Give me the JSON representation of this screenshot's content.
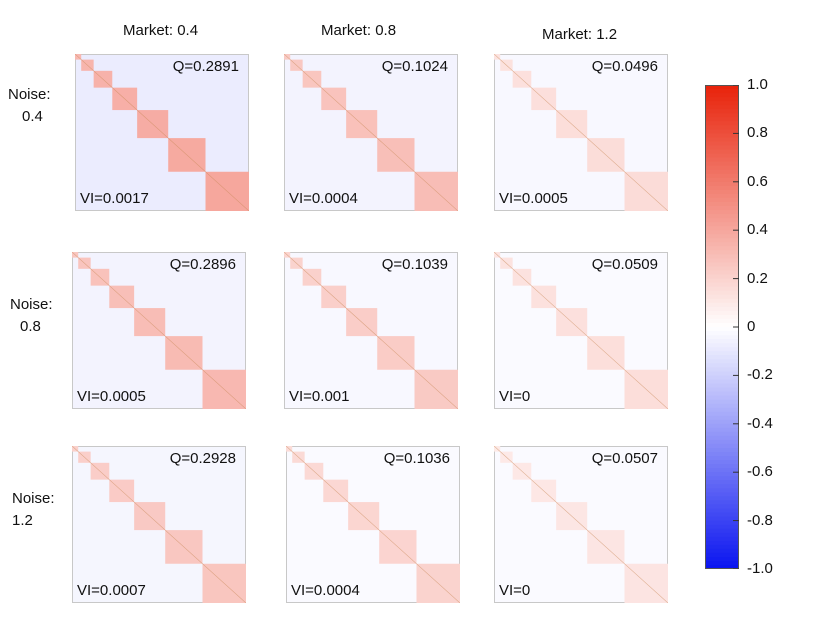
{
  "columns": [
    {
      "label": "Market:",
      "value": "0.4"
    },
    {
      "label": "Market:",
      "value": "0.8"
    },
    {
      "label": "Market:",
      "value": "1.2"
    }
  ],
  "rows": [
    {
      "label": "Noise:",
      "value": "0.4"
    },
    {
      "label": "Noise:",
      "value": "0.8"
    },
    {
      "label": "Noise:",
      "value": "1.2"
    }
  ],
  "panels": [
    {
      "row": 0,
      "col": 0,
      "q": "Q=0.2891",
      "vi": "VI=0.0017",
      "diag_level": 0.4,
      "offdiag_level": -0.08
    },
    {
      "row": 0,
      "col": 1,
      "q": "Q=0.1024",
      "vi": "VI=0.0004",
      "diag_level": 0.3,
      "offdiag_level": -0.05
    },
    {
      "row": 0,
      "col": 2,
      "q": "Q=0.0496",
      "vi": "VI=0.0005",
      "diag_level": 0.16,
      "offdiag_level": -0.03
    },
    {
      "row": 1,
      "col": 0,
      "q": "Q=0.2896",
      "vi": "VI=0.0005",
      "diag_level": 0.32,
      "offdiag_level": -0.05
    },
    {
      "row": 1,
      "col": 1,
      "q": "Q=0.1039",
      "vi": "VI=0.001",
      "diag_level": 0.24,
      "offdiag_level": -0.03
    },
    {
      "row": 1,
      "col": 2,
      "q": "Q=0.0509",
      "vi": "VI=0",
      "diag_level": 0.15,
      "offdiag_level": -0.02
    },
    {
      "row": 2,
      "col": 0,
      "q": "Q=0.2928",
      "vi": "VI=0.0007",
      "diag_level": 0.26,
      "offdiag_level": -0.04
    },
    {
      "row": 2,
      "col": 1,
      "q": "Q=0.1036",
      "vi": "VI=0.0004",
      "diag_level": 0.2,
      "offdiag_level": -0.02
    },
    {
      "row": 2,
      "col": 2,
      "q": "Q=0.0507",
      "vi": "VI=0",
      "diag_level": 0.12,
      "offdiag_level": -0.02
    }
  ],
  "colorbar": {
    "ticks": [
      "1.0",
      "0.8",
      "0.6",
      "0.4",
      "0.2",
      "0",
      "-0.2",
      "-0.4",
      "-0.6",
      "-0.8",
      "-1.0"
    ],
    "min": -1.0,
    "max": 1.0,
    "color_high": "#e8220a",
    "color_mid": "#ffffff",
    "color_low": "#0a14f0"
  },
  "chart_data": {
    "type": "heatmap",
    "xlabel": "Market",
    "ylabel": "Noise",
    "x": [
      0.4,
      0.8,
      1.2
    ],
    "y": [
      0.4,
      0.8,
      1.2
    ],
    "block_sizes": [
      1,
      2,
      3,
      4,
      5,
      6,
      7
    ],
    "Q": [
      [
        0.2891,
        0.1024,
        0.0496
      ],
      [
        0.2896,
        0.1039,
        0.0509
      ],
      [
        0.2928,
        0.1036,
        0.0507
      ]
    ],
    "VI": [
      [
        0.0017,
        0.0004,
        0.0005
      ],
      [
        0.0005,
        0.001,
        0
      ],
      [
        0.0007,
        0.0004,
        0
      ]
    ],
    "colorbar_range": [
      -1.0,
      1.0
    ]
  }
}
